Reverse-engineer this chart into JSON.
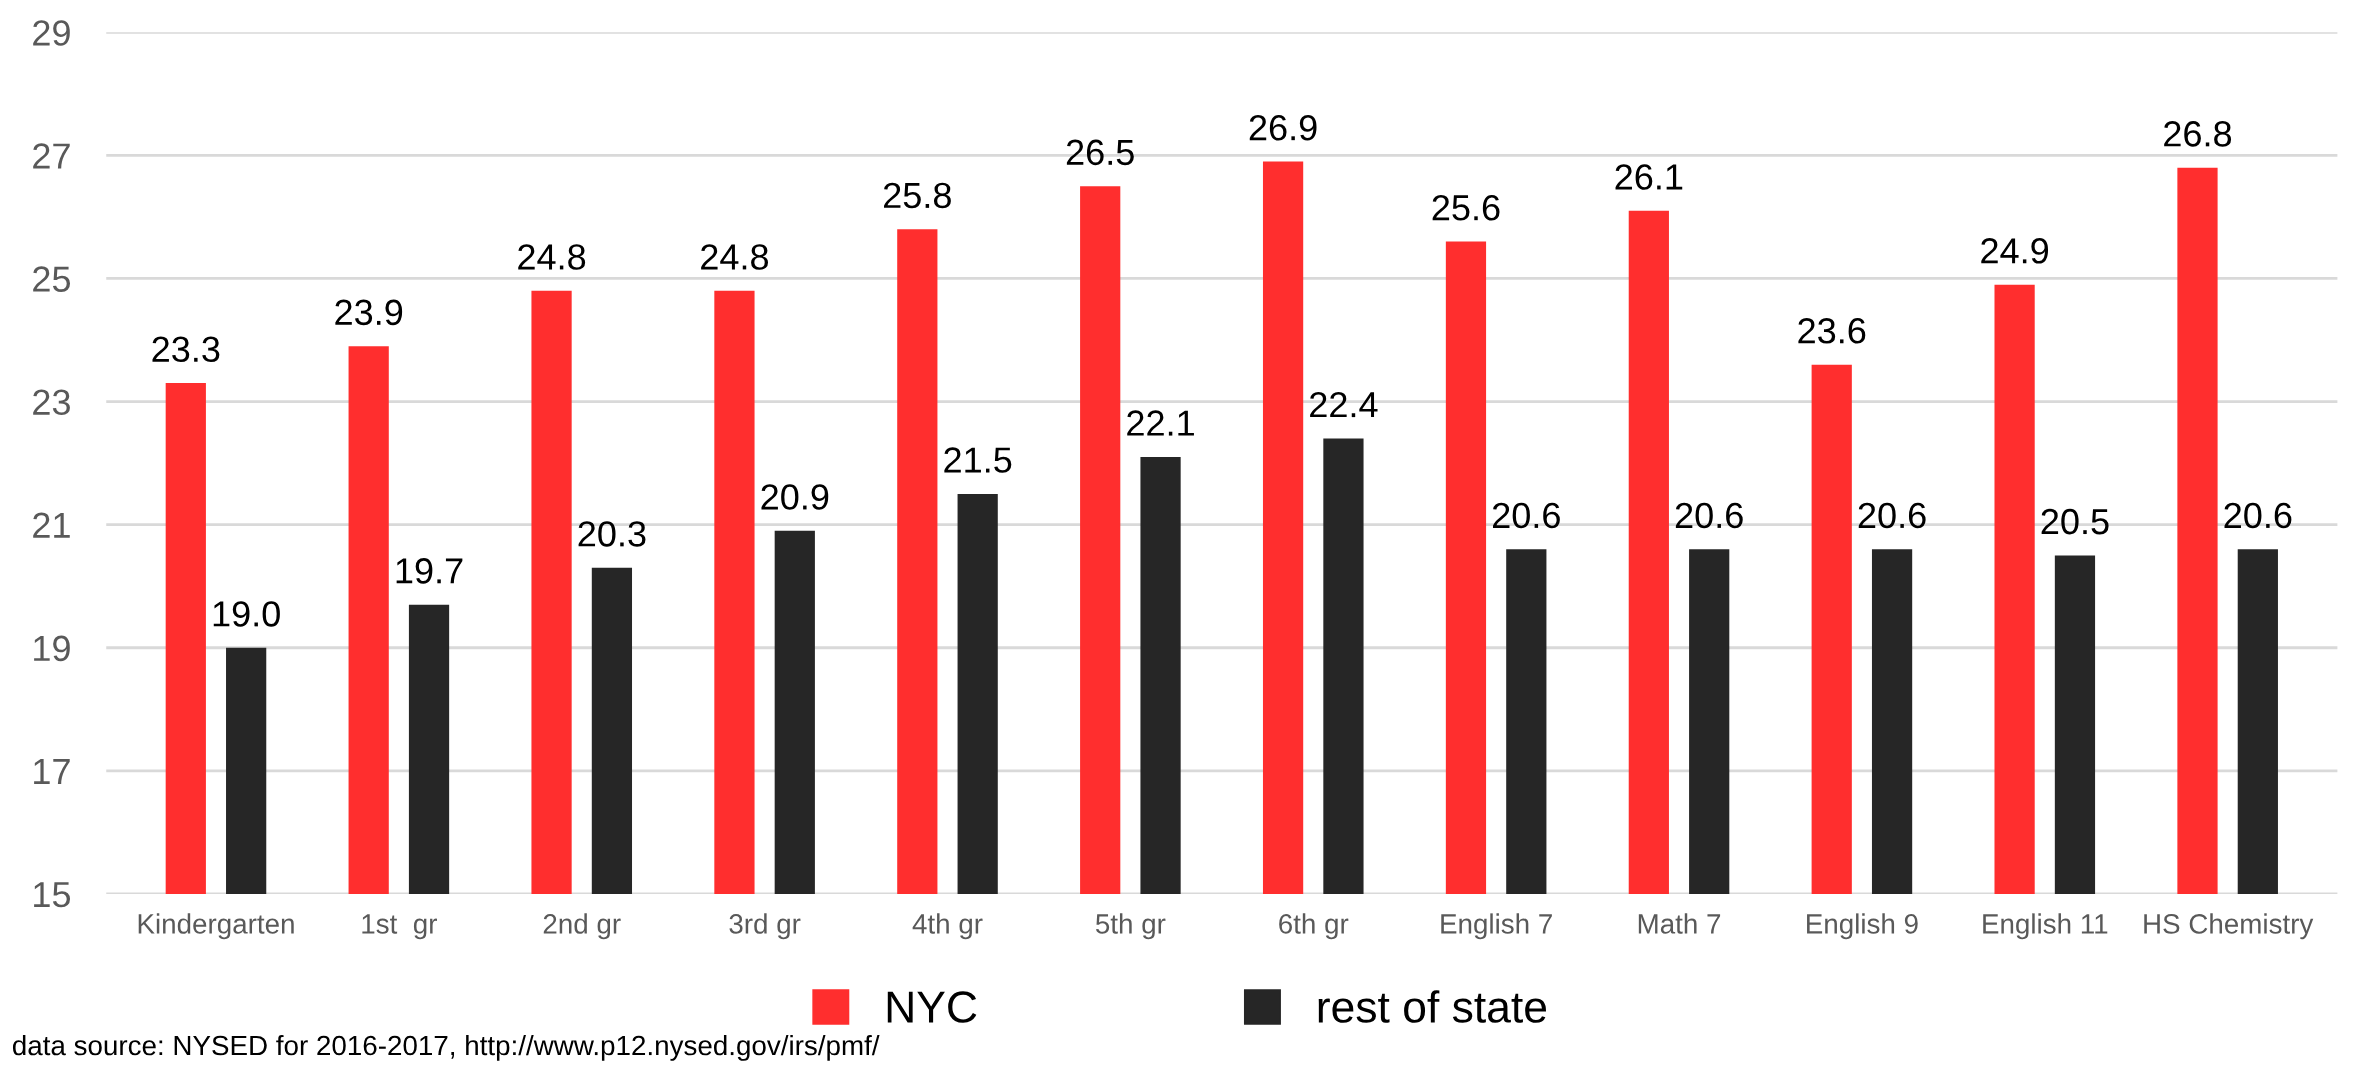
{
  "chart_data": {
    "type": "bar",
    "categories": [
      "Kindergarten",
      "1st  gr",
      "2nd gr",
      "3rd gr",
      "4th gr",
      "5th gr",
      "6th gr",
      "English 7",
      "Math 7",
      "English 9",
      "English 11",
      "HS Chemistry"
    ],
    "series": [
      {
        "name": "NYC",
        "color": "#ff2e2e",
        "values": [
          23.3,
          23.9,
          24.8,
          24.8,
          25.8,
          26.5,
          26.9,
          25.6,
          26.1,
          23.6,
          24.9,
          26.8
        ],
        "value_labels": [
          "23.3",
          "23.9",
          "24.8",
          "24.8",
          "25.8",
          "26.5",
          "26.9",
          "25.6",
          "26.1",
          "23.6",
          "24.9",
          "26.8"
        ]
      },
      {
        "name": "rest of state",
        "color": "#262626",
        "values": [
          19.0,
          19.7,
          20.3,
          20.9,
          21.5,
          22.1,
          22.4,
          20.6,
          20.6,
          20.6,
          20.5,
          20.6
        ],
        "value_labels": [
          "19.0",
          "19.7",
          "20.3",
          "20.9",
          "21.5",
          "22.1",
          "22.4",
          "20.6",
          "20.6",
          "20.6",
          "20.5",
          "20.6"
        ]
      }
    ],
    "ylim": [
      15,
      29
    ],
    "yticks": [
      15,
      17,
      19,
      21,
      23,
      25,
      27,
      29
    ],
    "grid": "y",
    "legend": "bottom",
    "annotations": [
      "data source: NYSED for 2016-2017, http://www.p12.nysed.gov/irs/pmf/"
    ]
  }
}
